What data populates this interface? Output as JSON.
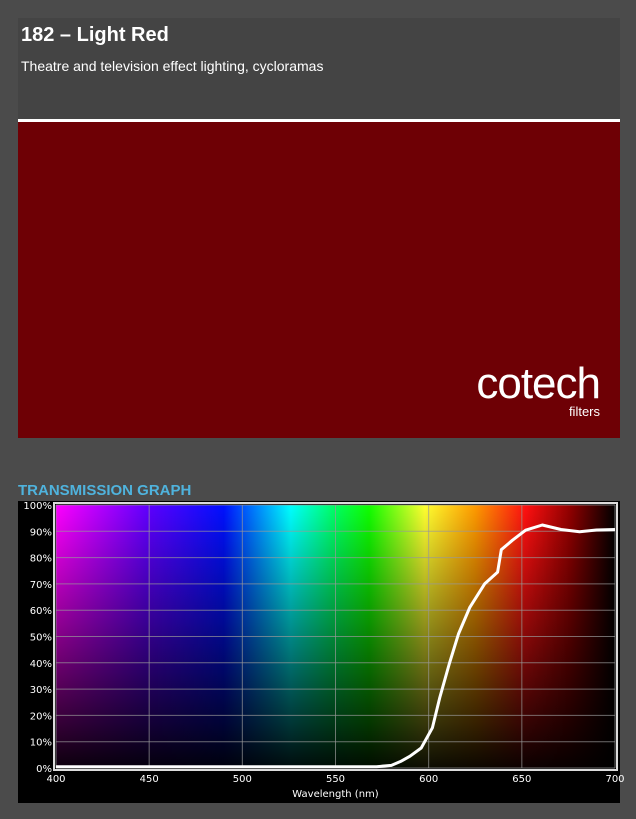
{
  "header": {
    "title": "182 – Light Red",
    "subtitle": "Theatre and television effect lighting, cycloramas"
  },
  "swatch": {
    "color": "#6e0005"
  },
  "logo": {
    "name": "cotech",
    "tagline": "filters"
  },
  "graph_heading": "TRANSMISSION GRAPH",
  "colors": {
    "background": "#4b4b4b",
    "heading": "#4fb3dd",
    "curve": "#ffffff"
  },
  "chart_data": {
    "type": "line",
    "title": "",
    "xlabel": "Wavelength (nm)",
    "ylabel": "",
    "xlim": [
      400,
      700
    ],
    "ylim": [
      0,
      100
    ],
    "grid": true,
    "x_ticks": [
      "400",
      "450",
      "500",
      "550",
      "600",
      "650",
      "700"
    ],
    "y_ticks": [
      "0%",
      "10%",
      "20%",
      "30%",
      "40%",
      "50%",
      "60%",
      "70%",
      "80%",
      "90%",
      "100%"
    ],
    "series": [
      {
        "x": [
          400,
          572,
          580,
          585,
          590,
          596,
          602,
          606,
          611,
          616,
          622,
          630,
          637,
          639,
          645,
          652,
          661,
          671,
          681,
          690,
          700
        ],
        "y": [
          0.5,
          0.5,
          1,
          2.5,
          4.5,
          7.6,
          15.3,
          26.8,
          39.5,
          51,
          61,
          70,
          74.5,
          83,
          86.6,
          90.4,
          92.4,
          90.7,
          89.8,
          90.5,
          90.7
        ]
      }
    ]
  }
}
